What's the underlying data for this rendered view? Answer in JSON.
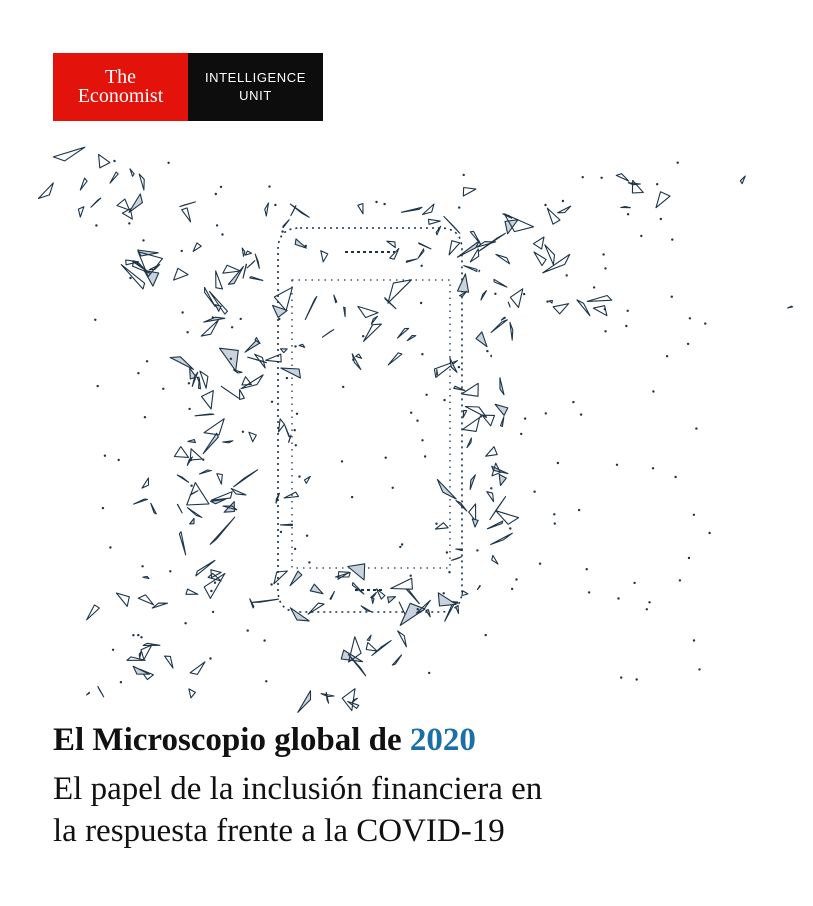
{
  "logo": {
    "brand_line1": "The",
    "brand_line2": "Economist",
    "unit_line1": "INTELLIGENCE",
    "unit_line2": "UNIT"
  },
  "illustration": {
    "icon": "hand-holding-phone-polygon-network-icon",
    "stroke_color": "#1d3346",
    "fill_color": "#c9d3dd"
  },
  "cover": {
    "title_text": "El Microscopio global de",
    "title_year": "2020",
    "subtitle_line1": "El papel de la inclusión financiera en",
    "subtitle_line2": "la respuesta frente a la COVID-19"
  },
  "colors": {
    "brand_red": "#e3120b",
    "brand_black": "#0d0d0d",
    "year_accent": "#1a6fa6"
  }
}
